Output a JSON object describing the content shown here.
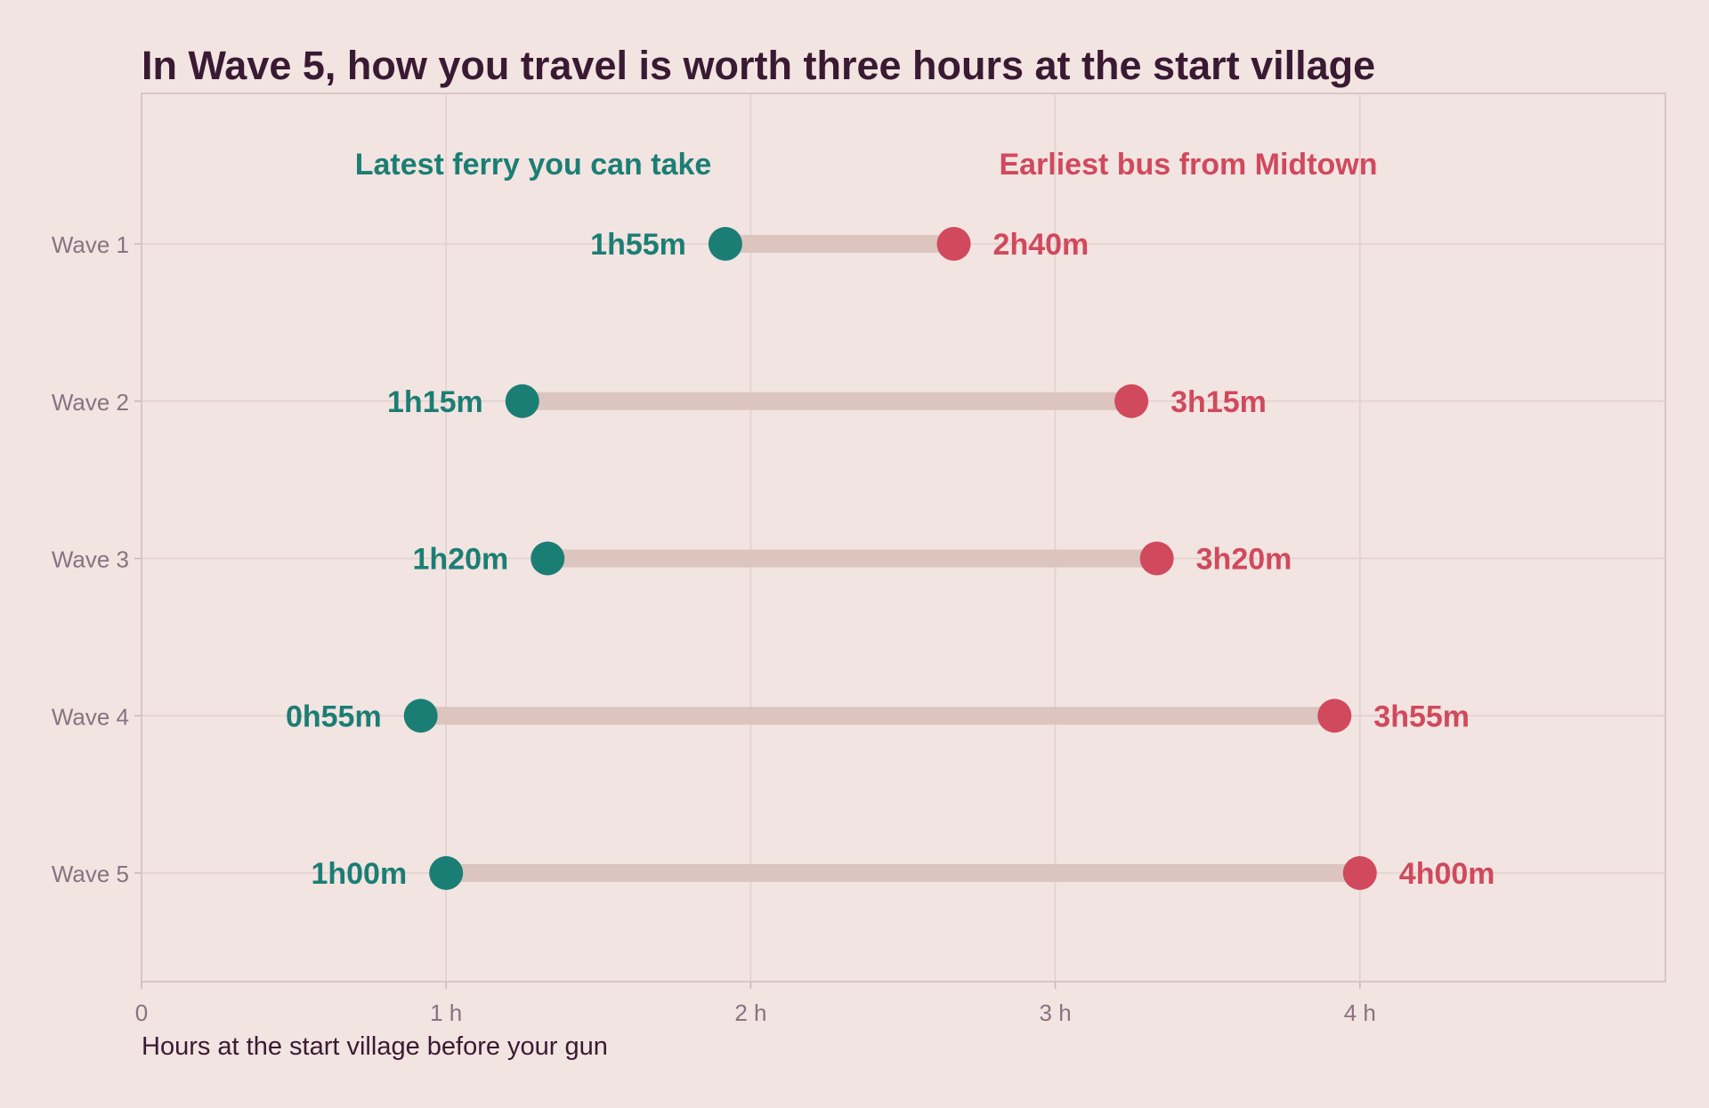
{
  "chart_data": {
    "type": "dumbbell",
    "title": "In Wave 5, how you travel is worth three hours at the start village",
    "xlabel": "Hours at the start village before your gun",
    "ylabel": "",
    "xlim": [
      0,
      5
    ],
    "x_ticks": [
      {
        "value": 0,
        "label": "0"
      },
      {
        "value": 1,
        "label": "1 h"
      },
      {
        "value": 2,
        "label": "2 h"
      },
      {
        "value": 3,
        "label": "3 h"
      },
      {
        "value": 4,
        "label": "4 h"
      }
    ],
    "grid": true,
    "categories": [
      "Wave 1",
      "Wave 2",
      "Wave 3",
      "Wave 4",
      "Wave 5"
    ],
    "series": [
      {
        "name": "Latest ferry you can take",
        "color": "#1b7e74",
        "values": [
          1.9167,
          1.25,
          1.3333,
          0.9167,
          1.0
        ],
        "labels": [
          "1h55m",
          "1h15m",
          "1h20m",
          "0h55m",
          "1h00m"
        ]
      },
      {
        "name": "Earliest bus from Midtown",
        "color": "#d0495d",
        "values": [
          2.6667,
          3.25,
          3.3333,
          3.9167,
          4.0
        ],
        "labels": [
          "2h40m",
          "3h15m",
          "3h20m",
          "3h55m",
          "4h00m"
        ]
      }
    ],
    "connector_color": "#dcc4bf",
    "legend": "top, inline above series"
  }
}
